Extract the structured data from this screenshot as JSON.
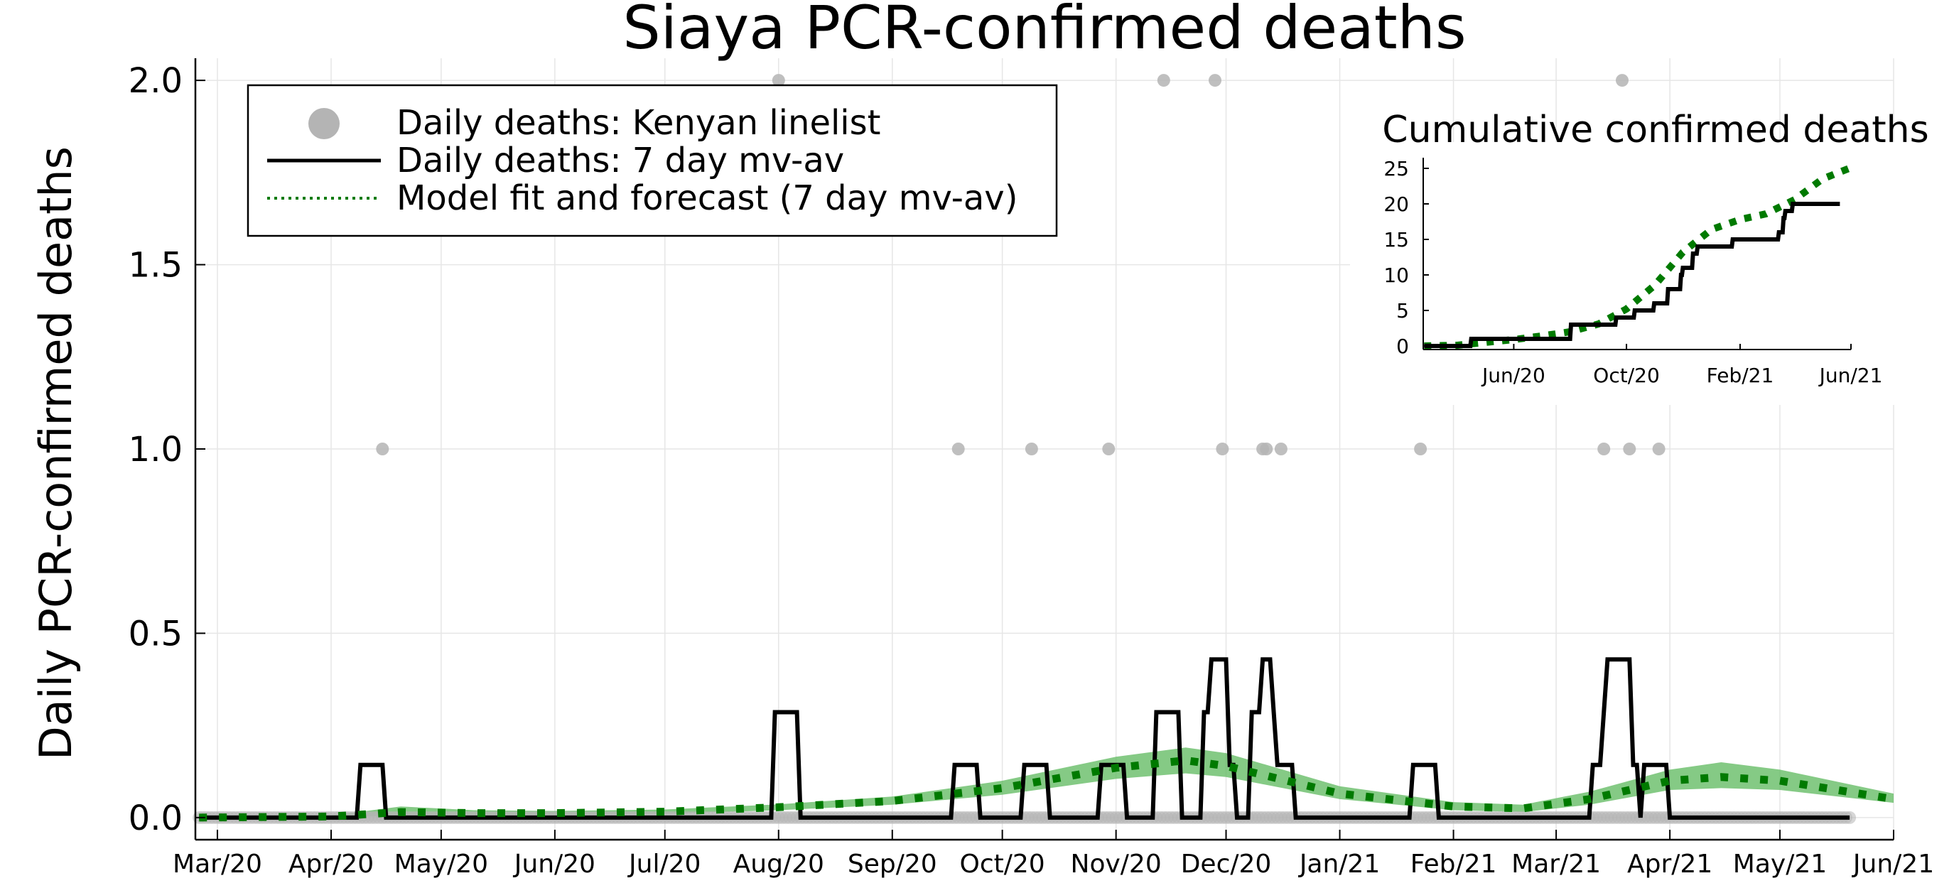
{
  "chart_data": [
    {
      "type": "line",
      "title": "Siaya PCR-confirmed deaths",
      "xlabel": "",
      "ylabel": "Daily PCR-confirmed deaths",
      "xlim": [
        "2020-02-24",
        "2021-06-01"
      ],
      "ylim": [
        -0.06,
        2.06
      ],
      "x_ticks": [
        {
          "date": "2020-03-01",
          "label": "Mar/20"
        },
        {
          "date": "2020-04-01",
          "label": "Apr/20"
        },
        {
          "date": "2020-05-01",
          "label": "May/20"
        },
        {
          "date": "2020-06-01",
          "label": "Jun/20"
        },
        {
          "date": "2020-07-01",
          "label": "Jul/20"
        },
        {
          "date": "2020-08-01",
          "label": "Aug/20"
        },
        {
          "date": "2020-09-01",
          "label": "Sep/20"
        },
        {
          "date": "2020-10-01",
          "label": "Oct/20"
        },
        {
          "date": "2020-11-01",
          "label": "Nov/20"
        },
        {
          "date": "2020-12-01",
          "label": "Dec/20"
        },
        {
          "date": "2021-01-01",
          "label": "Jan/21"
        },
        {
          "date": "2021-02-01",
          "label": "Feb/21"
        },
        {
          "date": "2021-03-01",
          "label": "Mar/21"
        },
        {
          "date": "2021-04-01",
          "label": "Apr/21"
        },
        {
          "date": "2021-05-01",
          "label": "May/21"
        },
        {
          "date": "2021-06-01",
          "label": "Jun/21"
        }
      ],
      "y_ticks": [
        {
          "value": 0.0,
          "label": "0.0"
        },
        {
          "value": 0.5,
          "label": "0.5"
        },
        {
          "value": 1.0,
          "label": "1.0"
        },
        {
          "value": 1.5,
          "label": "1.5"
        },
        {
          "value": 2.0,
          "label": "2.0"
        }
      ],
      "grid": true,
      "legend": {
        "placement": "top-left",
        "entries": [
          {
            "label": "Daily deaths: Kenyan linelist",
            "style": "marker",
            "color": "#b4b4b4"
          },
          {
            "label": "Daily deaths: 7 day mv-av",
            "style": "solid",
            "color": "#000000"
          },
          {
            "label": "Model fit and forecast (7 day mv-av)",
            "style": "dotted",
            "color": "#007a00"
          }
        ]
      },
      "series": [
        {
          "name": "Daily deaths: Kenyan linelist",
          "kind": "scatter",
          "color": "#b4b4b4",
          "zero_range": [
            "2020-02-25",
            "2021-05-20"
          ],
          "points": [
            {
              "x": "2020-04-15",
              "y": 1
            },
            {
              "x": "2020-08-01",
              "y": 2
            },
            {
              "x": "2020-09-19",
              "y": 1
            },
            {
              "x": "2020-10-09",
              "y": 1
            },
            {
              "x": "2020-10-30",
              "y": 1
            },
            {
              "x": "2020-11-14",
              "y": 2
            },
            {
              "x": "2020-11-28",
              "y": 2
            },
            {
              "x": "2020-11-30",
              "y": 1
            },
            {
              "x": "2020-12-11",
              "y": 1
            },
            {
              "x": "2020-12-12",
              "y": 1
            },
            {
              "x": "2020-12-16",
              "y": 1
            },
            {
              "x": "2021-01-23",
              "y": 1
            },
            {
              "x": "2021-03-14",
              "y": 1
            },
            {
              "x": "2021-03-19",
              "y": 2
            },
            {
              "x": "2021-03-21",
              "y": 1
            },
            {
              "x": "2021-03-29",
              "y": 1
            }
          ]
        },
        {
          "name": "Daily deaths: 7 day mv-av",
          "kind": "step",
          "color": "#000000",
          "points": [
            {
              "x": "2020-02-25",
              "y": 0
            },
            {
              "x": "2020-04-08",
              "y": 0
            },
            {
              "x": "2020-04-09",
              "y": 0.143
            },
            {
              "x": "2020-04-15",
              "y": 0.143
            },
            {
              "x": "2020-04-16",
              "y": 0
            },
            {
              "x": "2020-07-30",
              "y": 0
            },
            {
              "x": "2020-07-31",
              "y": 0.286
            },
            {
              "x": "2020-08-06",
              "y": 0.286
            },
            {
              "x": "2020-08-07",
              "y": 0
            },
            {
              "x": "2020-09-17",
              "y": 0
            },
            {
              "x": "2020-09-18",
              "y": 0.143
            },
            {
              "x": "2020-09-24",
              "y": 0.143
            },
            {
              "x": "2020-09-25",
              "y": 0
            },
            {
              "x": "2020-10-06",
              "y": 0
            },
            {
              "x": "2020-10-07",
              "y": 0.143
            },
            {
              "x": "2020-10-13",
              "y": 0.143
            },
            {
              "x": "2020-10-14",
              "y": 0
            },
            {
              "x": "2020-10-27",
              "y": 0
            },
            {
              "x": "2020-10-28",
              "y": 0.143
            },
            {
              "x": "2020-11-03",
              "y": 0.143
            },
            {
              "x": "2020-11-04",
              "y": 0
            },
            {
              "x": "2020-11-11",
              "y": 0
            },
            {
              "x": "2020-11-12",
              "y": 0.286
            },
            {
              "x": "2020-11-18",
              "y": 0.286
            },
            {
              "x": "2020-11-19",
              "y": 0
            },
            {
              "x": "2020-11-24",
              "y": 0
            },
            {
              "x": "2020-11-25",
              "y": 0.286
            },
            {
              "x": "2020-11-26",
              "y": 0.286
            },
            {
              "x": "2020-11-27",
              "y": 0.429
            },
            {
              "x": "2020-12-01",
              "y": 0.429
            },
            {
              "x": "2020-12-02",
              "y": 0.143
            },
            {
              "x": "2020-12-03",
              "y": 0.143
            },
            {
              "x": "2020-12-04",
              "y": 0
            },
            {
              "x": "2020-12-07",
              "y": 0
            },
            {
              "x": "2020-12-08",
              "y": 0.286
            },
            {
              "x": "2020-12-10",
              "y": 0.286
            },
            {
              "x": "2020-12-11",
              "y": 0.429
            },
            {
              "x": "2020-12-13",
              "y": 0.429
            },
            {
              "x": "2020-12-14",
              "y": 0.286
            },
            {
              "x": "2020-12-15",
              "y": 0.143
            },
            {
              "x": "2020-12-19",
              "y": 0.143
            },
            {
              "x": "2020-12-20",
              "y": 0
            },
            {
              "x": "2021-01-20",
              "y": 0
            },
            {
              "x": "2021-01-21",
              "y": 0.143
            },
            {
              "x": "2021-01-27",
              "y": 0.143
            },
            {
              "x": "2021-01-28",
              "y": 0
            },
            {
              "x": "2021-03-10",
              "y": 0
            },
            {
              "x": "2021-03-11",
              "y": 0.143
            },
            {
              "x": "2021-03-13",
              "y": 0.143
            },
            {
              "x": "2021-03-14",
              "y": 0.286
            },
            {
              "x": "2021-03-15",
              "y": 0.429
            },
            {
              "x": "2021-03-21",
              "y": 0.429
            },
            {
              "x": "2021-03-22",
              "y": 0.143
            },
            {
              "x": "2021-03-23",
              "y": 0.143
            },
            {
              "x": "2021-03-24",
              "y": 0
            },
            {
              "x": "2021-03-25",
              "y": 0.143
            },
            {
              "x": "2021-03-31",
              "y": 0.143
            },
            {
              "x": "2021-04-01",
              "y": 0
            },
            {
              "x": "2021-05-20",
              "y": 0
            }
          ]
        },
        {
          "name": "Model fit and forecast (7 day mv-av)",
          "kind": "dotted_line_with_band",
          "color": "#007a00",
          "band_color": "#5cb85c",
          "points": [
            {
              "x": "2020-02-25",
              "y": 0.0,
              "lo": 0.0,
              "hi": 0.0
            },
            {
              "x": "2020-04-01",
              "y": 0.003,
              "lo": 0.0,
              "hi": 0.006
            },
            {
              "x": "2020-04-20",
              "y": 0.015,
              "lo": 0.005,
              "hi": 0.03
            },
            {
              "x": "2020-05-10",
              "y": 0.012,
              "lo": 0.006,
              "hi": 0.02
            },
            {
              "x": "2020-06-01",
              "y": 0.012,
              "lo": 0.007,
              "hi": 0.018
            },
            {
              "x": "2020-07-01",
              "y": 0.016,
              "lo": 0.01,
              "hi": 0.022
            },
            {
              "x": "2020-08-01",
              "y": 0.028,
              "lo": 0.02,
              "hi": 0.036
            },
            {
              "x": "2020-09-01",
              "y": 0.045,
              "lo": 0.035,
              "hi": 0.057
            },
            {
              "x": "2020-10-01",
              "y": 0.08,
              "lo": 0.062,
              "hi": 0.1
            },
            {
              "x": "2020-11-01",
              "y": 0.135,
              "lo": 0.105,
              "hi": 0.165
            },
            {
              "x": "2020-11-20",
              "y": 0.155,
              "lo": 0.12,
              "hi": 0.19
            },
            {
              "x": "2020-12-01",
              "y": 0.14,
              "lo": 0.11,
              "hi": 0.175
            },
            {
              "x": "2021-01-01",
              "y": 0.065,
              "lo": 0.05,
              "hi": 0.085
            },
            {
              "x": "2021-02-01",
              "y": 0.03,
              "lo": 0.02,
              "hi": 0.042
            },
            {
              "x": "2021-02-20",
              "y": 0.025,
              "lo": 0.015,
              "hi": 0.035
            },
            {
              "x": "2021-03-10",
              "y": 0.05,
              "lo": 0.035,
              "hi": 0.07
            },
            {
              "x": "2021-04-01",
              "y": 0.1,
              "lo": 0.075,
              "hi": 0.13
            },
            {
              "x": "2021-04-15",
              "y": 0.11,
              "lo": 0.08,
              "hi": 0.15
            },
            {
              "x": "2021-05-01",
              "y": 0.1,
              "lo": 0.075,
              "hi": 0.13
            },
            {
              "x": "2021-06-01",
              "y": 0.05,
              "lo": 0.04,
              "hi": 0.065
            }
          ]
        }
      ]
    },
    {
      "type": "line",
      "title": "Cumulative confirmed deaths",
      "xlabel": "",
      "ylabel": "",
      "xlim": [
        "2020-02-24",
        "2021-06-01"
      ],
      "ylim": [
        -0.5,
        26.5
      ],
      "x_ticks": [
        {
          "date": "2020-06-01",
          "label": "Jun/20"
        },
        {
          "date": "2020-10-01",
          "label": "Oct/20"
        },
        {
          "date": "2021-02-01",
          "label": "Feb/21"
        },
        {
          "date": "2021-06-01",
          "label": "Jun/21"
        }
      ],
      "y_ticks": [
        {
          "value": 0,
          "label": "0"
        },
        {
          "value": 5,
          "label": "5"
        },
        {
          "value": 10,
          "label": "10"
        },
        {
          "value": 15,
          "label": "15"
        },
        {
          "value": 20,
          "label": "20"
        },
        {
          "value": 25,
          "label": "25"
        }
      ],
      "grid": false,
      "series": [
        {
          "kind": "step",
          "color": "#000000",
          "points": [
            {
              "x": "2020-02-25",
              "y": 0
            },
            {
              "x": "2020-04-15",
              "y": 0
            },
            {
              "x": "2020-04-16",
              "y": 1
            },
            {
              "x": "2020-08-01",
              "y": 1
            },
            {
              "x": "2020-08-02",
              "y": 3
            },
            {
              "x": "2020-09-19",
              "y": 3
            },
            {
              "x": "2020-09-20",
              "y": 4
            },
            {
              "x": "2020-10-09",
              "y": 4
            },
            {
              "x": "2020-10-10",
              "y": 5
            },
            {
              "x": "2020-10-30",
              "y": 5
            },
            {
              "x": "2020-10-31",
              "y": 6
            },
            {
              "x": "2020-11-14",
              "y": 6
            },
            {
              "x": "2020-11-15",
              "y": 8
            },
            {
              "x": "2020-11-28",
              "y": 8
            },
            {
              "x": "2020-11-29",
              "y": 10
            },
            {
              "x": "2020-11-30",
              "y": 10
            },
            {
              "x": "2020-12-01",
              "y": 11
            },
            {
              "x": "2020-12-11",
              "y": 11
            },
            {
              "x": "2020-12-12",
              "y": 13
            },
            {
              "x": "2020-12-16",
              "y": 13
            },
            {
              "x": "2020-12-17",
              "y": 14
            },
            {
              "x": "2021-01-23",
              "y": 14
            },
            {
              "x": "2021-01-24",
              "y": 15
            },
            {
              "x": "2021-03-14",
              "y": 15
            },
            {
              "x": "2021-03-15",
              "y": 16
            },
            {
              "x": "2021-03-19",
              "y": 16
            },
            {
              "x": "2021-03-20",
              "y": 18
            },
            {
              "x": "2021-03-21",
              "y": 18
            },
            {
              "x": "2021-03-22",
              "y": 19
            },
            {
              "x": "2021-03-29",
              "y": 19
            },
            {
              "x": "2021-03-30",
              "y": 20
            },
            {
              "x": "2021-05-20",
              "y": 20
            }
          ]
        },
        {
          "kind": "dotted",
          "color": "#007a00",
          "points": [
            {
              "x": "2020-02-25",
              "y": 0
            },
            {
              "x": "2020-04-01",
              "y": 0.1
            },
            {
              "x": "2020-05-01",
              "y": 0.5
            },
            {
              "x": "2020-06-01",
              "y": 0.9
            },
            {
              "x": "2020-07-01",
              "y": 1.4
            },
            {
              "x": "2020-08-01",
              "y": 2.0
            },
            {
              "x": "2020-09-01",
              "y": 3.1
            },
            {
              "x": "2020-10-01",
              "y": 5.2
            },
            {
              "x": "2020-11-01",
              "y": 8.6
            },
            {
              "x": "2020-12-01",
              "y": 13.2
            },
            {
              "x": "2021-01-01",
              "y": 16.4
            },
            {
              "x": "2021-02-01",
              "y": 17.8
            },
            {
              "x": "2021-03-01",
              "y": 18.6
            },
            {
              "x": "2021-04-01",
              "y": 20.6
            },
            {
              "x": "2021-05-01",
              "y": 23.5
            },
            {
              "x": "2021-06-01",
              "y": 25.1
            }
          ]
        }
      ]
    }
  ]
}
